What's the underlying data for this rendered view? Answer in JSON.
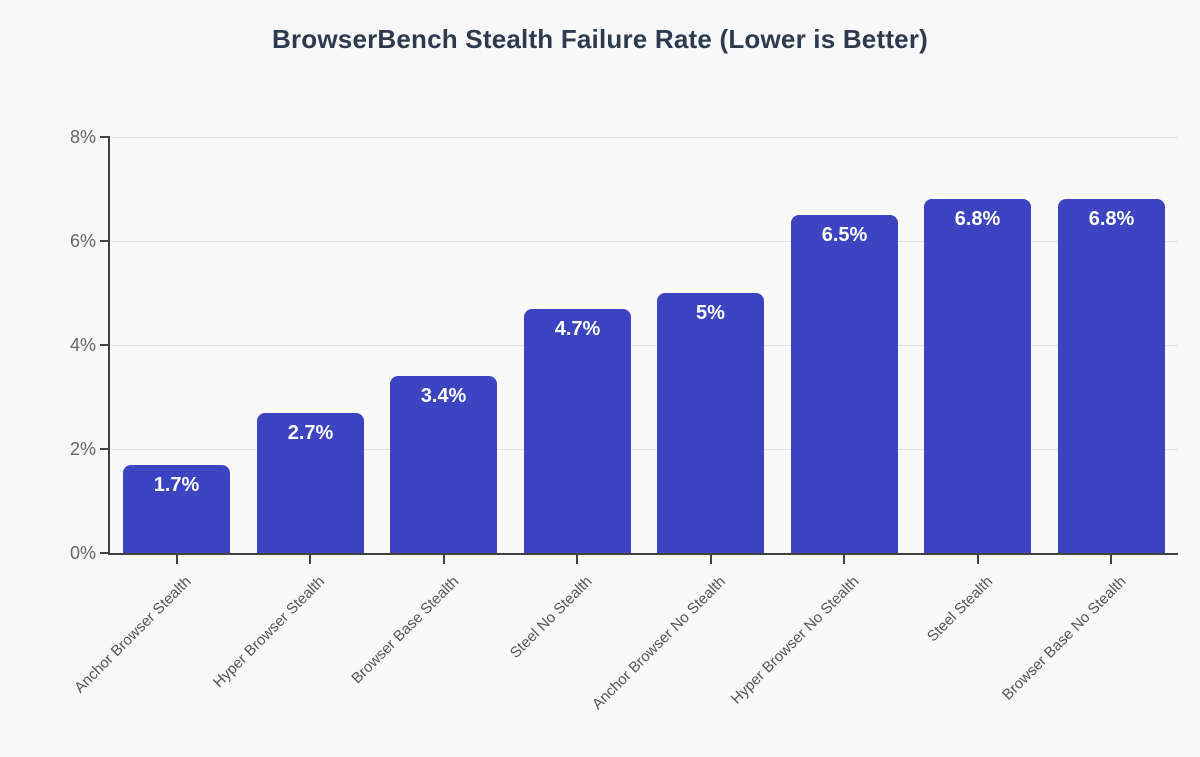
{
  "chart_data": {
    "type": "bar",
    "title": "BrowserBench Stealth Failure Rate (Lower is Better)",
    "categories": [
      "Anchor Browser Stealth",
      "Hyper Browser Stealth",
      "Browser Base Stealth",
      "Steel No Stealth",
      "Anchor Browser No Stealth",
      "Hyper Browser No Stealth",
      "Steel Stealth",
      "Browser Base No Stealth"
    ],
    "values": [
      1.7,
      2.7,
      3.4,
      4.7,
      5.0,
      6.5,
      6.8,
      6.8
    ],
    "value_labels": [
      "1.7%",
      "2.7%",
      "3.4%",
      "4.7%",
      "5%",
      "6.5%",
      "6.8%",
      "6.8%"
    ],
    "xlabel": "",
    "ylabel": "",
    "ylim": [
      0,
      8
    ],
    "yticks": [
      {
        "value": 0,
        "label": "0%"
      },
      {
        "value": 2,
        "label": "2%"
      },
      {
        "value": 4,
        "label": "4%"
      },
      {
        "value": 6,
        "label": "6%"
      },
      {
        "value": 8,
        "label": "8%"
      }
    ],
    "grid": "horizontal",
    "legend": "none",
    "colors": {
      "bar": "#3d44c2",
      "background": "#f9f9fa",
      "gridline": "#e3e3e6",
      "axis": "#424242",
      "title_text": "#2e3b4e",
      "y_tick_text": "#666666",
      "x_tick_text": "#555555",
      "value_label_text": "#ffffff"
    }
  }
}
